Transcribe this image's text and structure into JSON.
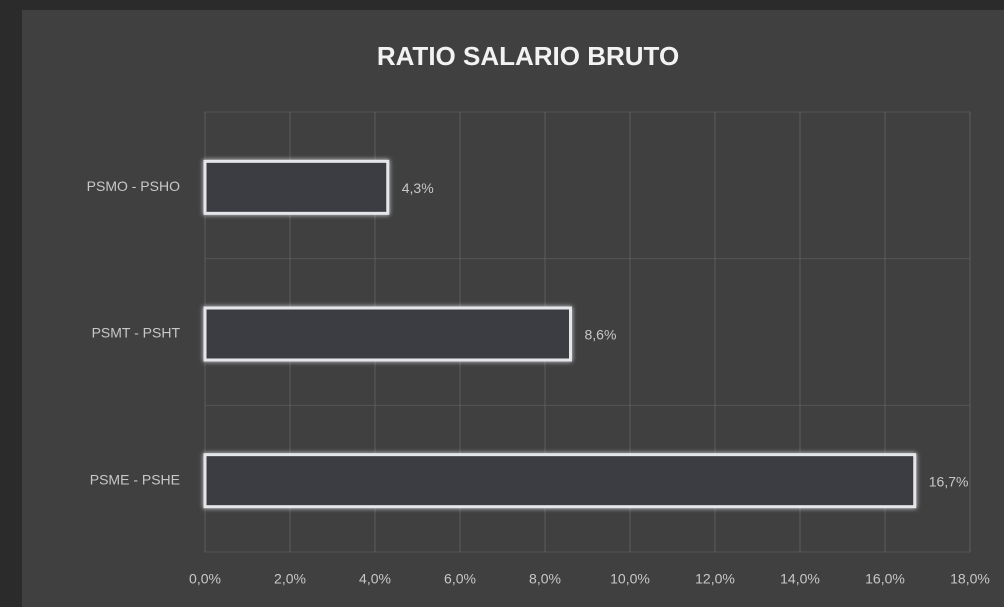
{
  "chart_data": {
    "type": "barh",
    "title": "RATIO SALARIO BRUTO",
    "categories": [
      "PSMO - PSHO",
      "PSMT - PSHT",
      "PSME - PSHE"
    ],
    "values": [
      4.3,
      8.6,
      16.7
    ],
    "value_labels": [
      "4,3%",
      "8,6%",
      "16,7%"
    ],
    "color": "#3b3d42",
    "edgecolor": "#e4e6ea",
    "xlim": [
      0,
      18
    ],
    "xticks": [
      {
        "value": 0,
        "label": "0,0%"
      },
      {
        "value": 2,
        "label": "2,0%"
      },
      {
        "value": 4,
        "label": "4,0%"
      },
      {
        "value": 6,
        "label": "6,0%"
      },
      {
        "value": 8,
        "label": "8,0%"
      },
      {
        "value": 10,
        "label": "10,0%"
      },
      {
        "value": 12,
        "label": "12,0%"
      },
      {
        "value": 14,
        "label": "14,0%"
      },
      {
        "value": 16,
        "label": "16,0%"
      },
      {
        "value": 18,
        "label": "18,0%"
      }
    ],
    "grid": true
  }
}
